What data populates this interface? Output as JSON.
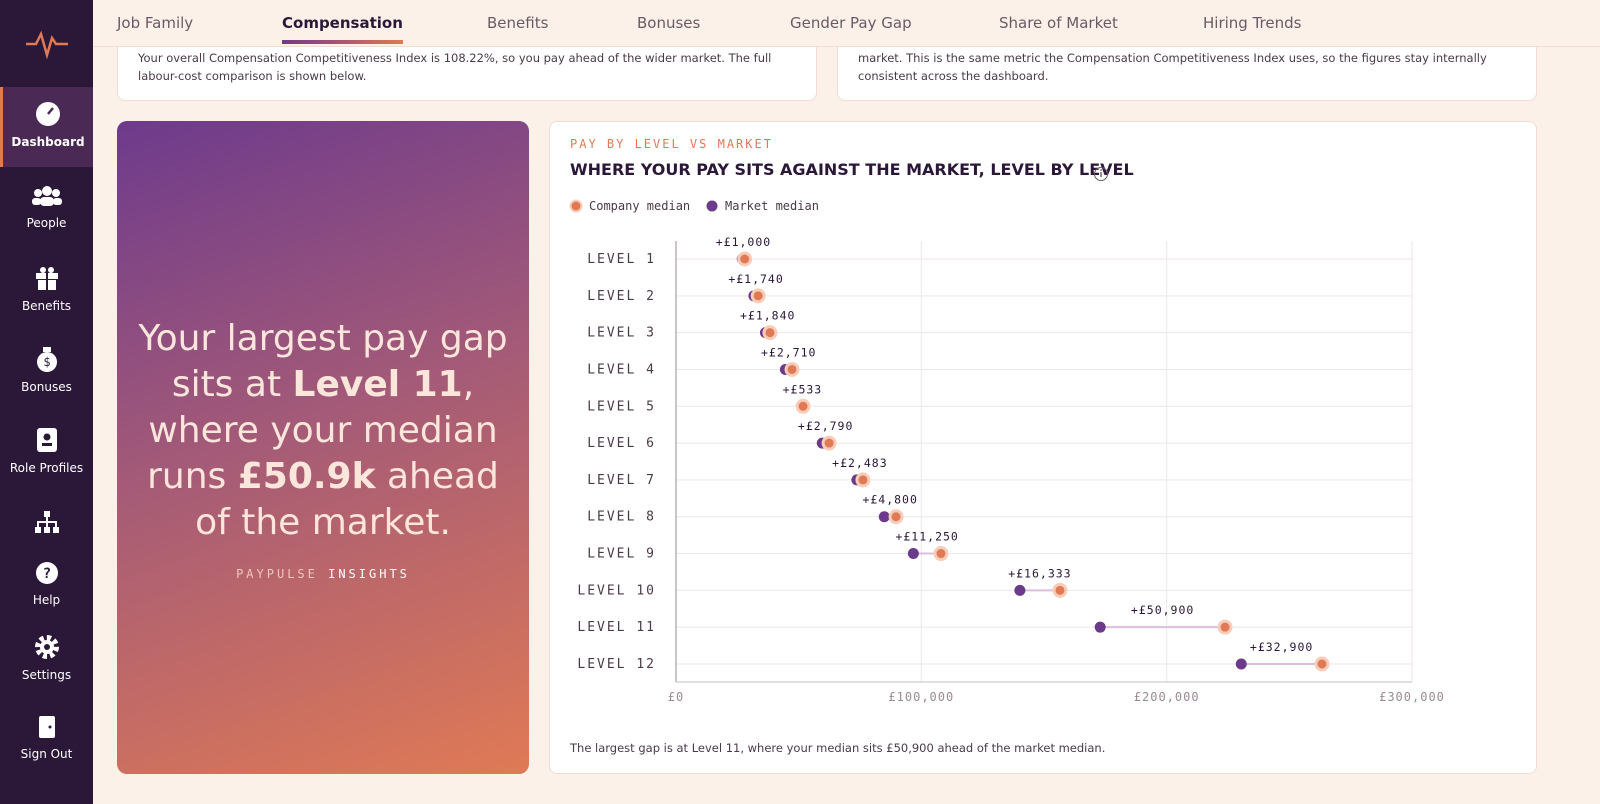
{
  "sidebar": {
    "items": [
      "Dashboard",
      "People",
      "Benefits",
      "Bonuses",
      "Role Profiles",
      "Help",
      "Settings",
      "Sign Out"
    ]
  },
  "tabs": [
    "Job Family",
    "Compensation",
    "Benefits",
    "Bonuses",
    "Gender Pay Gap",
    "Share of Market",
    "Hiring Trends"
  ],
  "top_cards": [
    "Your overall Compensation Competitiveness Index is 108.22%, so you pay ahead of the wider market. The full labour-cost comparison is shown below.",
    "market. This is the same metric the Compensation Competitiveness Index uses, so the figures stay internally consistent across the dashboard."
  ],
  "hero": {
    "headline": [
      "Your largest pay gap sits at ",
      "Level 11",
      ", where your median runs ",
      "£50.9k",
      " ahead of the market."
    ],
    "brand": "PAYPULSE",
    "tagline": "INSIGHTS"
  },
  "chart_data": {
    "type": "dumbbell",
    "eyebrow": "PAY BY LEVEL VS MARKET",
    "title": "WHERE YOUR PAY SITS AGAINST THE MARKET, LEVEL BY LEVEL",
    "categories": [
      "LEVEL 1",
      "LEVEL 2",
      "LEVEL 3",
      "LEVEL 4",
      "LEVEL 5",
      "LEVEL 6",
      "LEVEL 7",
      "LEVEL 8",
      "LEVEL 9",
      "LEVEL 10",
      "LEVEL 11",
      "LEVEL 12"
    ],
    "series": [
      {
        "name": "Company median",
        "color": "#e07a55",
        "values": [
          28000,
          33500,
          38300,
          47300,
          51800,
          62400,
          76200,
          89700,
          108000,
          156500,
          223800,
          263300
        ]
      },
      {
        "name": "Market median",
        "color": "#6b3a8a",
        "values": [
          27000,
          31760,
          36460,
          44590,
          51267,
          59610,
          73717,
          84900,
          96750,
          140167,
          172900,
          230400
        ]
      }
    ],
    "gaps": {
      "values": [
        1000,
        1740,
        1840,
        2710,
        533,
        2790,
        2483,
        4800,
        11250,
        16333,
        50900,
        32900
      ],
      "value_labels": [
        "+£1,000",
        "+£1,740",
        "+£1,840",
        "+£2,710",
        "+£533",
        "+£2,790",
        "+£2,483",
        "+£4,800",
        "+£11,250",
        "+£16,333",
        "+£50,900",
        "+£32,900"
      ]
    },
    "xlim": [
      0,
      300000
    ],
    "xticks": [
      {
        "value": 0,
        "label": "£0"
      },
      {
        "value": 100000,
        "label": "£100,000"
      },
      {
        "value": 200000,
        "label": "£200,000"
      },
      {
        "value": 300000,
        "label": "£300,000"
      }
    ],
    "grid": true,
    "footnote": "The largest gap is at Level 11, where your median sits £50,900 ahead of the market median."
  }
}
